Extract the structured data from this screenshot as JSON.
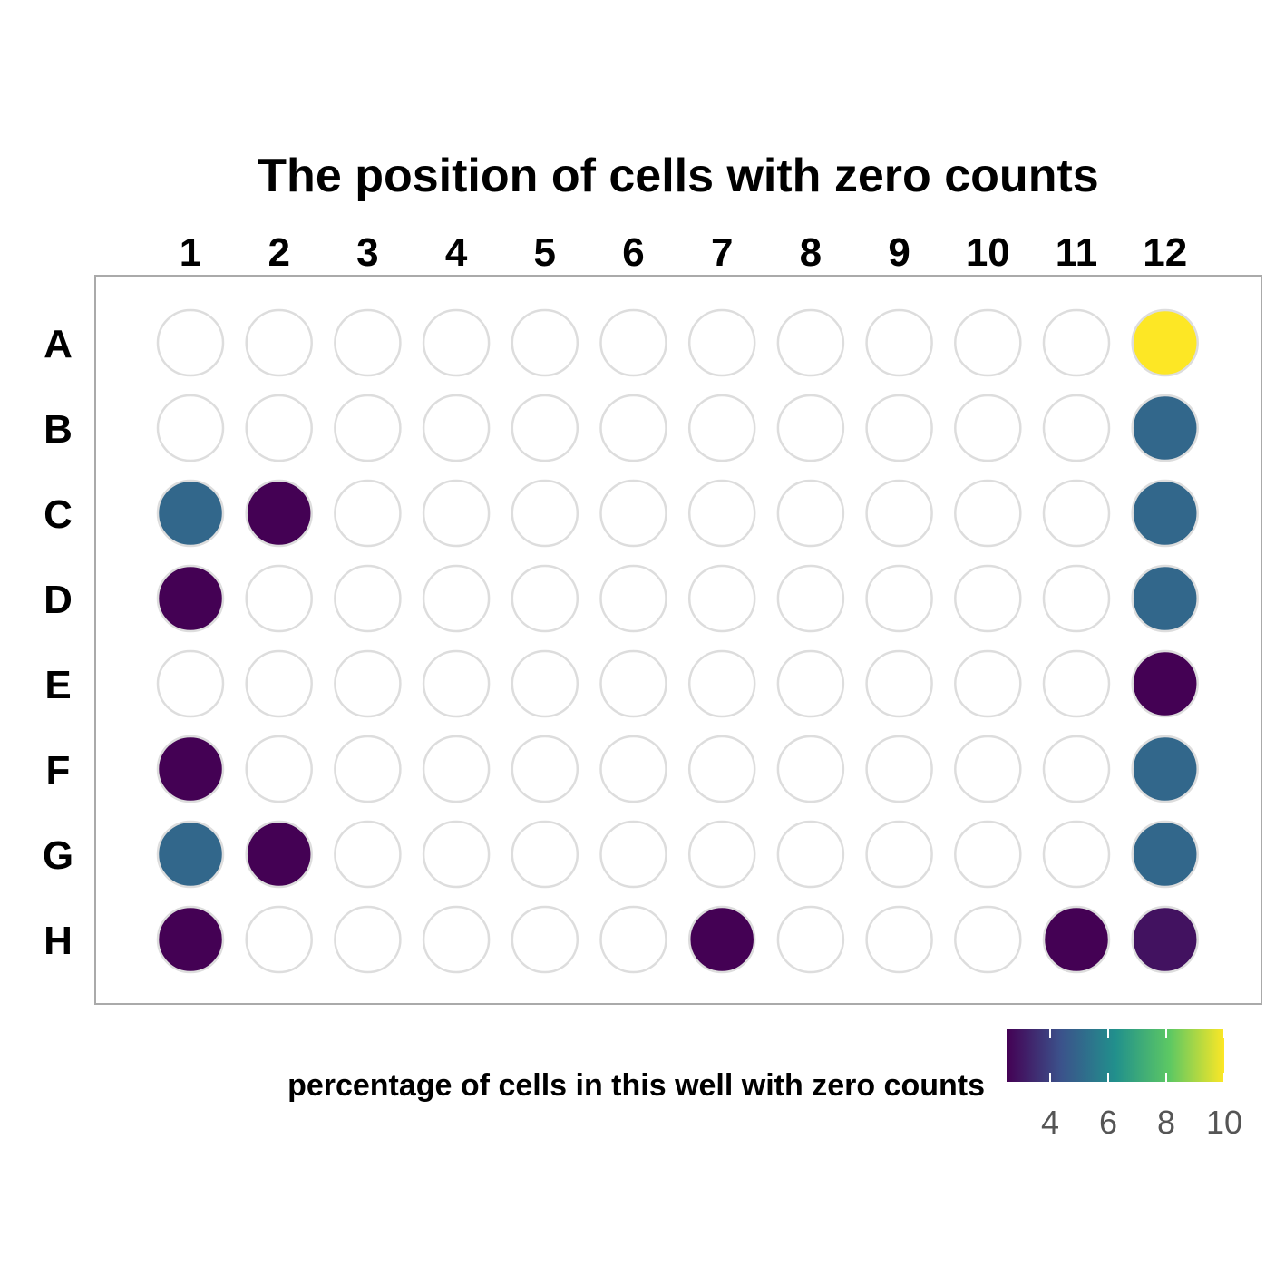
{
  "chart_data": {
    "type": "heatmap",
    "title": "The position of cells with zero counts",
    "columns": [
      "1",
      "2",
      "3",
      "4",
      "5",
      "6",
      "7",
      "8",
      "9",
      "10",
      "11",
      "12"
    ],
    "rows": [
      "A",
      "B",
      "C",
      "D",
      "E",
      "F",
      "G",
      "H"
    ],
    "legend": {
      "title": "percentage of cells in this well with zero counts",
      "ticks": [
        4,
        6,
        8,
        10
      ],
      "range": [
        2.5,
        10
      ],
      "colors": [
        "#440154",
        "#3b528b",
        "#21908c",
        "#5dc863",
        "#fde725"
      ],
      "position": "bottom"
    },
    "values": [
      [
        null,
        null,
        null,
        null,
        null,
        null,
        null,
        null,
        null,
        null,
        null,
        10.0
      ],
      [
        null,
        null,
        null,
        null,
        null,
        null,
        null,
        null,
        null,
        null,
        null,
        5.0
      ],
      [
        5.0,
        2.5,
        null,
        null,
        null,
        null,
        null,
        null,
        null,
        null,
        null,
        5.0
      ],
      [
        2.5,
        null,
        null,
        null,
        null,
        null,
        null,
        null,
        null,
        null,
        null,
        5.0
      ],
      [
        null,
        null,
        null,
        null,
        null,
        null,
        null,
        null,
        null,
        null,
        null,
        2.5
      ],
      [
        2.5,
        null,
        null,
        null,
        null,
        null,
        null,
        null,
        null,
        null,
        null,
        5.0
      ],
      [
        5.0,
        2.5,
        null,
        null,
        null,
        null,
        null,
        null,
        null,
        null,
        null,
        5.0
      ],
      [
        2.5,
        null,
        null,
        null,
        null,
        null,
        2.5,
        null,
        null,
        null,
        2.5,
        2.9
      ]
    ],
    "empty_well_stroke": "#dddddd",
    "panel_border": "#aaaaaa"
  }
}
